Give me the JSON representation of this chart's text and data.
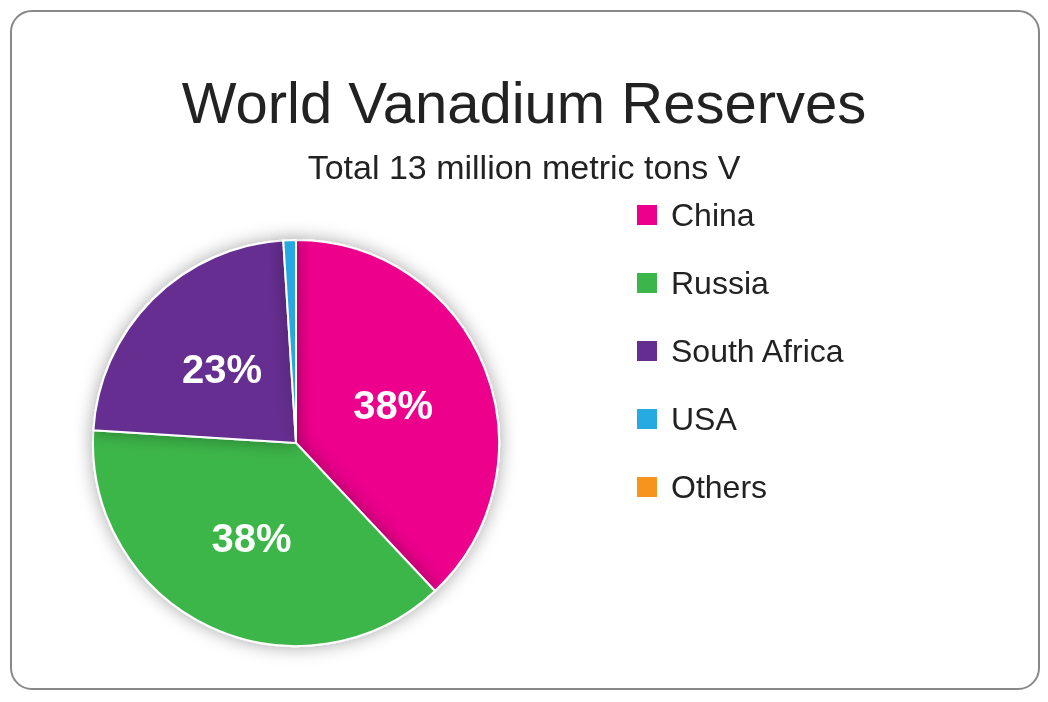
{
  "chart_data": {
    "type": "pie",
    "title": "World Vanadium Reserves",
    "subtitle": "Total 13 million metric tons V",
    "categories": [
      "China",
      "Russia",
      "South Africa",
      "USA",
      "Others"
    ],
    "values": [
      38,
      38,
      23,
      1,
      0
    ],
    "colors": [
      "#ec008c",
      "#3cb64a",
      "#662d91",
      "#27a9e1",
      "#f7941d"
    ],
    "value_labels": [
      "38%",
      "38%",
      "23%",
      null,
      null
    ],
    "legend": "right"
  }
}
